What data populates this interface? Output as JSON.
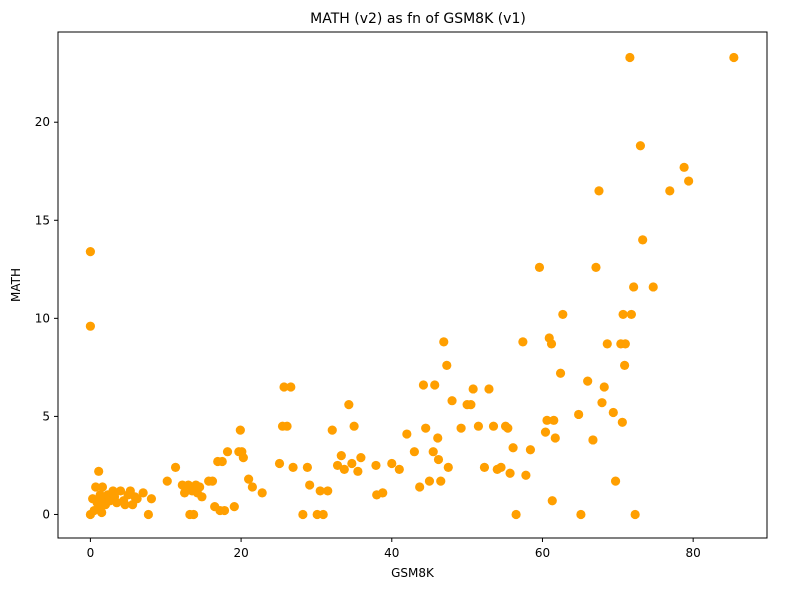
{
  "chart_data": {
    "type": "scatter",
    "title": "MATH (v2) as fn of GSM8K (v1)",
    "xlabel": "GSM8K",
    "ylabel": "MATH",
    "xlim": [
      -4.3,
      89.8
    ],
    "ylim": [
      -1.2,
      24.6
    ],
    "xticks": [
      0,
      20,
      40,
      60,
      80
    ],
    "yticks": [
      0,
      5,
      10,
      15,
      20
    ],
    "grid": false,
    "color": "#ff9f00",
    "points": [
      [
        0,
        13.4
      ],
      [
        0,
        9.6
      ],
      [
        0,
        0
      ],
      [
        0.3,
        0.8
      ],
      [
        0.5,
        0.2
      ],
      [
        0.7,
        1.4
      ],
      [
        0.9,
        0.6
      ],
      [
        1.1,
        2.2
      ],
      [
        1.2,
        0.3
      ],
      [
        1.3,
        1.0
      ],
      [
        1.5,
        0.1
      ],
      [
        1.6,
        1.4
      ],
      [
        1.8,
        0.8
      ],
      [
        2.0,
        0.5
      ],
      [
        2.3,
        1.0
      ],
      [
        2.6,
        0.7
      ],
      [
        3.0,
        1.2
      ],
      [
        3.2,
        0.9
      ],
      [
        3.5,
        0.6
      ],
      [
        4.0,
        1.2
      ],
      [
        4.4,
        0.7
      ],
      [
        4.6,
        0.5
      ],
      [
        5.0,
        1.0
      ],
      [
        5.3,
        1.2
      ],
      [
        5.6,
        0.5
      ],
      [
        5.9,
        0.9
      ],
      [
        6.2,
        0.8
      ],
      [
        7.0,
        1.1
      ],
      [
        7.7,
        0
      ],
      [
        8.1,
        0.8
      ],
      [
        10.2,
        1.7
      ],
      [
        11.3,
        2.4
      ],
      [
        12.2,
        1.5
      ],
      [
        12.5,
        1.1
      ],
      [
        13.0,
        1.5
      ],
      [
        13.2,
        0
      ],
      [
        13.5,
        1.2
      ],
      [
        13.7,
        0
      ],
      [
        14.0,
        1.5
      ],
      [
        14.2,
        1.1
      ],
      [
        14.5,
        1.4
      ],
      [
        14.8,
        0.9
      ],
      [
        15.7,
        1.7
      ],
      [
        16.2,
        1.7
      ],
      [
        16.5,
        0.4
      ],
      [
        16.9,
        2.7
      ],
      [
        17.2,
        0.2
      ],
      [
        17.5,
        2.7
      ],
      [
        17.8,
        0.2
      ],
      [
        18.2,
        3.2
      ],
      [
        19.1,
        0.4
      ],
      [
        19.7,
        3.2
      ],
      [
        19.9,
        4.3
      ],
      [
        20.1,
        3.2
      ],
      [
        20.3,
        2.9
      ],
      [
        21.0,
        1.8
      ],
      [
        21.5,
        1.4
      ],
      [
        22.8,
        1.1
      ],
      [
        25.1,
        2.6
      ],
      [
        25.5,
        4.5
      ],
      [
        25.7,
        6.5
      ],
      [
        26.1,
        4.5
      ],
      [
        26.6,
        6.5
      ],
      [
        26.9,
        2.4
      ],
      [
        28.2,
        0
      ],
      [
        28.8,
        2.4
      ],
      [
        29.1,
        1.5
      ],
      [
        30.1,
        0
      ],
      [
        30.5,
        1.2
      ],
      [
        30.9,
        0
      ],
      [
        31.5,
        1.2
      ],
      [
        32.1,
        4.3
      ],
      [
        32.8,
        2.5
      ],
      [
        33.3,
        3.0
      ],
      [
        33.7,
        2.3
      ],
      [
        34.3,
        5.6
      ],
      [
        34.7,
        2.6
      ],
      [
        35.0,
        4.5
      ],
      [
        35.5,
        2.2
      ],
      [
        35.9,
        2.9
      ],
      [
        37.9,
        2.5
      ],
      [
        38.0,
        1.0
      ],
      [
        38.8,
        1.1
      ],
      [
        40.0,
        2.6
      ],
      [
        41.0,
        2.3
      ],
      [
        42.0,
        4.1
      ],
      [
        43.0,
        3.2
      ],
      [
        43.7,
        1.4
      ],
      [
        44.2,
        6.6
      ],
      [
        44.5,
        4.4
      ],
      [
        45.0,
        1.7
      ],
      [
        45.5,
        3.2
      ],
      [
        45.7,
        6.6
      ],
      [
        46.1,
        3.9
      ],
      [
        46.2,
        2.8
      ],
      [
        46.5,
        1.7
      ],
      [
        46.9,
        8.8
      ],
      [
        47.3,
        7.6
      ],
      [
        47.5,
        2.4
      ],
      [
        48.0,
        5.8
      ],
      [
        49.2,
        4.4
      ],
      [
        50.0,
        5.6
      ],
      [
        50.5,
        5.6
      ],
      [
        50.8,
        6.4
      ],
      [
        51.5,
        4.5
      ],
      [
        52.3,
        2.4
      ],
      [
        52.9,
        6.4
      ],
      [
        53.5,
        4.5
      ],
      [
        54.0,
        2.3
      ],
      [
        54.5,
        2.4
      ],
      [
        55.1,
        4.5
      ],
      [
        55.4,
        4.4
      ],
      [
        55.7,
        2.1
      ],
      [
        56.1,
        3.4
      ],
      [
        56.5,
        0
      ],
      [
        57.4,
        8.8
      ],
      [
        57.8,
        2.0
      ],
      [
        58.4,
        3.3
      ],
      [
        59.6,
        12.6
      ],
      [
        60.4,
        4.2
      ],
      [
        60.6,
        4.8
      ],
      [
        60.9,
        9.0
      ],
      [
        61.2,
        8.7
      ],
      [
        61.3,
        0.7
      ],
      [
        61.5,
        4.8
      ],
      [
        61.7,
        3.9
      ],
      [
        62.4,
        7.2
      ],
      [
        62.7,
        10.2
      ],
      [
        64.8,
        5.1
      ],
      [
        65.1,
        0
      ],
      [
        66.0,
        6.8
      ],
      [
        66.7,
        3.8
      ],
      [
        67.1,
        12.6
      ],
      [
        67.5,
        16.5
      ],
      [
        67.9,
        5.7
      ],
      [
        68.2,
        6.5
      ],
      [
        68.6,
        8.7
      ],
      [
        69.4,
        5.2
      ],
      [
        69.7,
        1.7
      ],
      [
        70.4,
        8.7
      ],
      [
        70.6,
        4.7
      ],
      [
        70.7,
        10.2
      ],
      [
        70.9,
        7.6
      ],
      [
        71.0,
        8.7
      ],
      [
        71.6,
        23.3
      ],
      [
        71.8,
        10.2
      ],
      [
        72.1,
        11.6
      ],
      [
        72.3,
        0
      ],
      [
        73.0,
        18.8
      ],
      [
        73.3,
        14.0
      ],
      [
        74.7,
        11.6
      ],
      [
        76.9,
        16.5
      ],
      [
        78.8,
        17.7
      ],
      [
        79.4,
        17.0
      ],
      [
        85.4,
        23.3
      ]
    ]
  }
}
